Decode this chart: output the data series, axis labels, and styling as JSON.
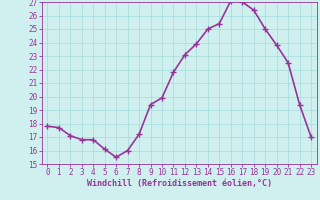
{
  "x": [
    0,
    1,
    2,
    3,
    4,
    5,
    6,
    7,
    8,
    9,
    10,
    11,
    12,
    13,
    14,
    15,
    16,
    17,
    18,
    19,
    20,
    21,
    22,
    23
  ],
  "y": [
    17.8,
    17.7,
    17.1,
    16.8,
    16.8,
    16.1,
    15.5,
    16.0,
    17.2,
    19.4,
    19.9,
    21.8,
    23.1,
    23.9,
    25.0,
    25.4,
    27.1,
    27.0,
    26.4,
    25.0,
    23.8,
    22.5,
    19.4,
    17.0
  ],
  "line_color": "#993399",
  "marker": "+",
  "marker_size": 4,
  "linewidth": 1.2,
  "bg_color": "#d0f0f0",
  "grid_color": "#aadddd",
  "axis_color": "#993399",
  "tick_color": "#993399",
  "xlabel": "Windchill (Refroidissement éolien,°C)",
  "xlabel_fontsize": 6.0,
  "tick_fontsize": 5.5,
  "ylim": [
    15,
    27
  ],
  "yticks": [
    15,
    16,
    17,
    18,
    19,
    20,
    21,
    22,
    23,
    24,
    25,
    26,
    27
  ],
  "xticks": [
    0,
    1,
    2,
    3,
    4,
    5,
    6,
    7,
    8,
    9,
    10,
    11,
    12,
    13,
    14,
    15,
    16,
    17,
    18,
    19,
    20,
    21,
    22,
    23
  ]
}
